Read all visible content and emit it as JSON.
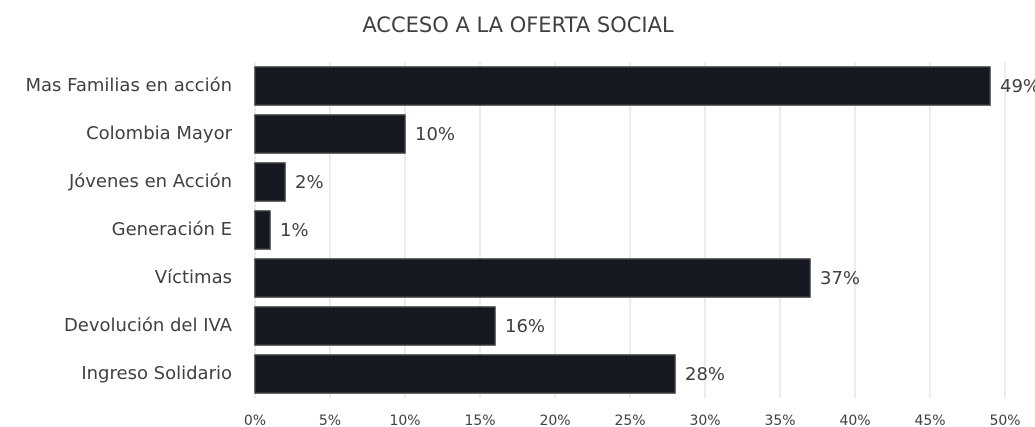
{
  "chart_data": {
    "type": "bar",
    "orientation": "horizontal",
    "title": "ACCESO A LA OFERTA SOCIAL",
    "categories": [
      "Mas Familias en acción",
      "Colombia Mayor",
      "Jóvenes en Acción",
      "Generación E",
      "Víctimas",
      "Devolución del IVA",
      "Ingreso Solidario"
    ],
    "values": [
      49,
      10,
      2,
      1,
      37,
      16,
      28
    ],
    "value_labels": [
      "49%",
      "10%",
      "2%",
      "1%",
      "37%",
      "16%",
      "28%"
    ],
    "color": "#151820",
    "xlim": [
      0,
      50
    ],
    "xticks": [
      {
        "value": 0,
        "label": "0%"
      },
      {
        "value": 5,
        "label": "5%"
      },
      {
        "value": 10,
        "label": "10%"
      },
      {
        "value": 15,
        "label": "15%"
      },
      {
        "value": 20,
        "label": "20%"
      },
      {
        "value": 25,
        "label": "25%"
      },
      {
        "value": 30,
        "label": "30%"
      },
      {
        "value": 35,
        "label": "35%"
      },
      {
        "value": 40,
        "label": "40%"
      },
      {
        "value": 45,
        "label": "45%"
      },
      {
        "value": 50,
        "label": "50%"
      }
    ],
    "grid": true
  }
}
